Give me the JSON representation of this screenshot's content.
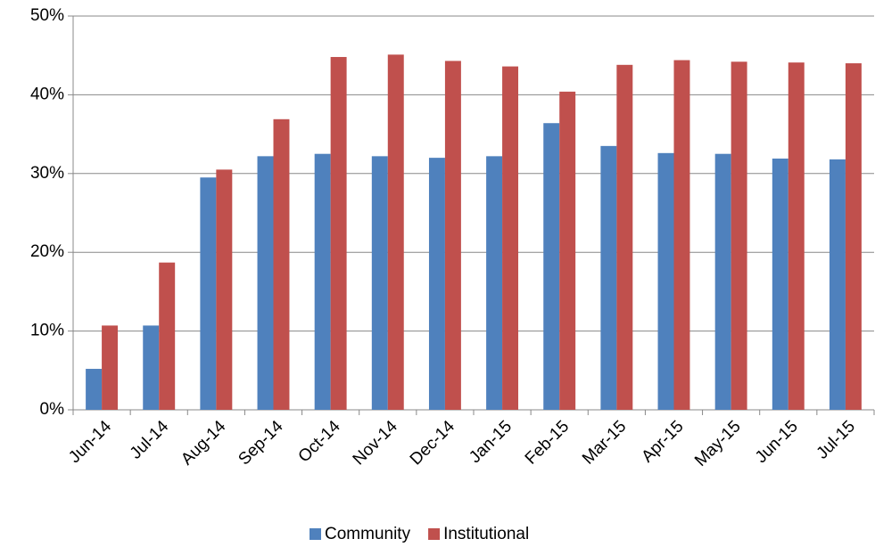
{
  "chart_data": {
    "type": "bar",
    "categories": [
      "Jun-14",
      "Jul-14",
      "Aug-14",
      "Sep-14",
      "Oct-14",
      "Nov-14",
      "Dec-14",
      "Jan-15",
      "Feb-15",
      "Mar-15",
      "Apr-15",
      "May-15",
      "Jun-15",
      "Jul-15"
    ],
    "series": [
      {
        "name": "Community",
        "color": "#4f81bd",
        "values": [
          5.2,
          10.7,
          29.5,
          32.2,
          32.5,
          32.2,
          32.0,
          32.2,
          36.4,
          33.5,
          32.6,
          32.5,
          31.9,
          31.8
        ]
      },
      {
        "name": "Institutional",
        "color": "#c0504d",
        "values": [
          10.7,
          18.7,
          30.5,
          36.9,
          44.8,
          45.1,
          44.3,
          43.6,
          40.4,
          43.8,
          44.4,
          44.2,
          44.1,
          44.0
        ]
      }
    ],
    "ylim": [
      0,
      50
    ],
    "yticks": [
      {
        "value": 0,
        "label": "0%"
      },
      {
        "value": 10,
        "label": "10%"
      },
      {
        "value": 20,
        "label": "20%"
      },
      {
        "value": 30,
        "label": "30%"
      },
      {
        "value": 40,
        "label": "40%"
      },
      {
        "value": 50,
        "label": "50%"
      }
    ],
    "grid": true,
    "legend": "bottom"
  }
}
